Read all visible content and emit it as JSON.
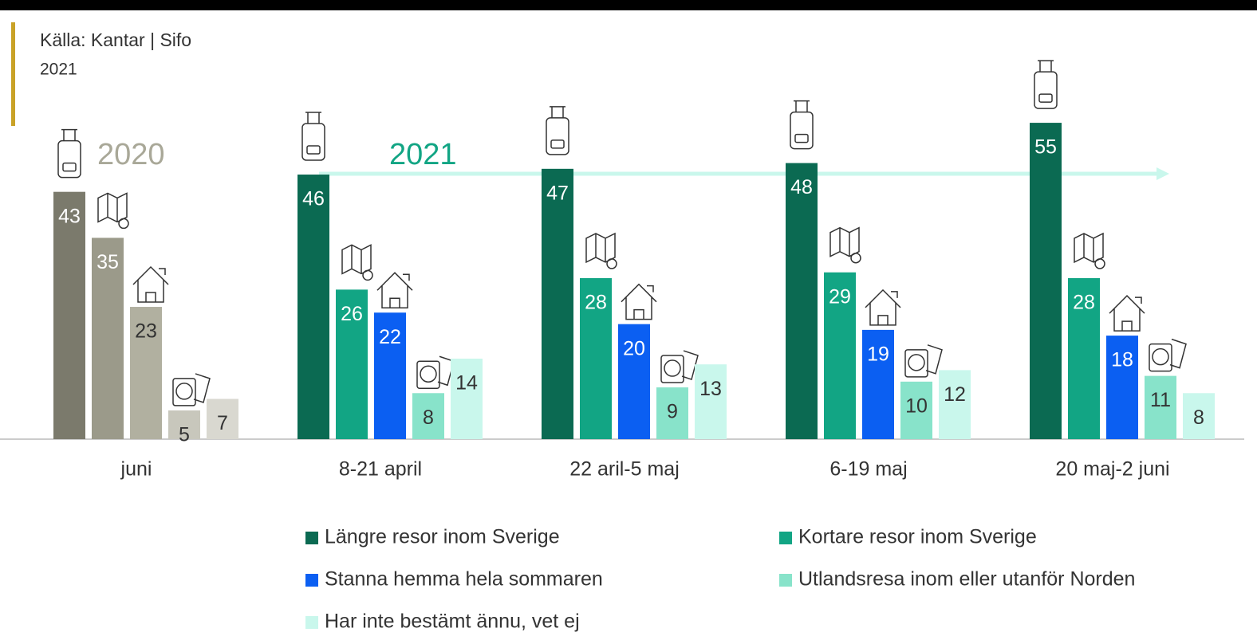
{
  "chart_data": {
    "type": "bar",
    "title": "Källa: Kantar | Sifo",
    "subtitle": "2021",
    "annotations": [
      "2020",
      "2021"
    ],
    "categories": [
      "juni",
      "8-21 april",
      "22 aril-5 maj",
      "6-19 maj",
      "20 maj-2 juni"
    ],
    "series": [
      {
        "name": "Längre resor inom Sverige",
        "color": "#0b6a52",
        "colors": [
          "#7b7a6c",
          "#0b6a52",
          "#0b6a52",
          "#0b6a52",
          "#0b6a52"
        ],
        "values": [
          43,
          46,
          47,
          48,
          55
        ]
      },
      {
        "name": "Kortare resor inom Sverige",
        "color": "#12a584",
        "colors": [
          "#9b9a8a",
          "#12a584",
          "#12a584",
          "#12a584",
          "#12a584"
        ],
        "values": [
          35,
          26,
          28,
          29,
          28
        ]
      },
      {
        "name": "Stanna hemma hela sommaren",
        "color": "#0b5ff2",
        "colors": [
          "#b1b0a0",
          "#0b5ff2",
          "#0b5ff2",
          "#0b5ff2",
          "#0b5ff2"
        ],
        "values": [
          23,
          22,
          20,
          19,
          18
        ]
      },
      {
        "name": "Utlandsresa inom eller utanför Norden",
        "color": "#88e3ca",
        "colors": [
          "#c8c7bc",
          "#88e3ca",
          "#88e3ca",
          "#88e3ca",
          "#88e3ca"
        ],
        "values": [
          5,
          8,
          9,
          10,
          11
        ]
      },
      {
        "name": "Har inte bestämt ännu, vet ej",
        "color": "#c9f7ec",
        "colors": [
          "#d9d8d0",
          "#c9f7ec",
          "#c9f7ec",
          "#c9f7ec",
          "#c9f7ec"
        ],
        "values": [
          7,
          14,
          13,
          12,
          8
        ]
      }
    ],
    "ylim": [
      0,
      60
    ],
    "grid": false
  }
}
